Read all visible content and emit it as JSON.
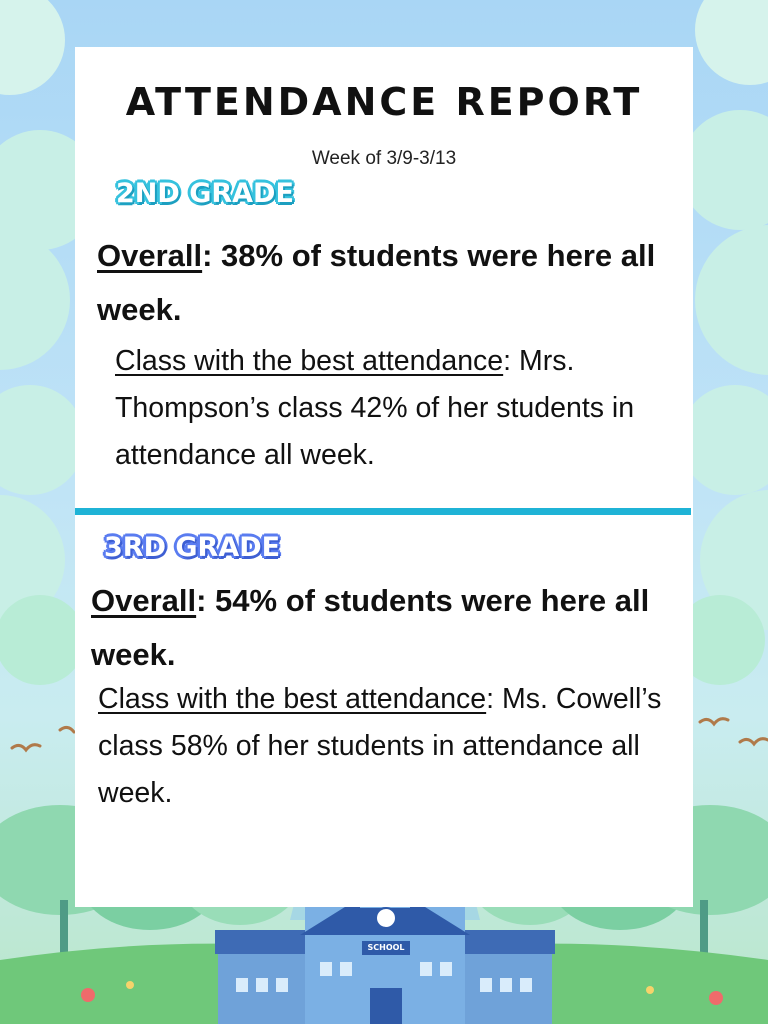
{
  "title": "ATTENDANCE REPORT",
  "week": "Week of 3/9-3/13",
  "colors": {
    "accent": "#1fb3d6",
    "second_grade": "#36c2de",
    "third_grade": "#5a7cf0"
  },
  "second_grade": {
    "label": "2ND GRADE",
    "overall_label": "Overall",
    "overall_text": ": 38% of students were here all week.",
    "best_label": "Class with the best attendance",
    "best_text": ": Mrs. Thompson’s class 42% of her students in attendance all week."
  },
  "third_grade": {
    "label": "3RD GRADE",
    "overall_label": "Overall",
    "overall_text": ": 54% of students were here all week.",
    "best_label": "Class with the best attendance",
    "best_text": ": Ms. Cowell’s class 58% of her students in attendance all week."
  },
  "school_sign": "SCHOOL"
}
